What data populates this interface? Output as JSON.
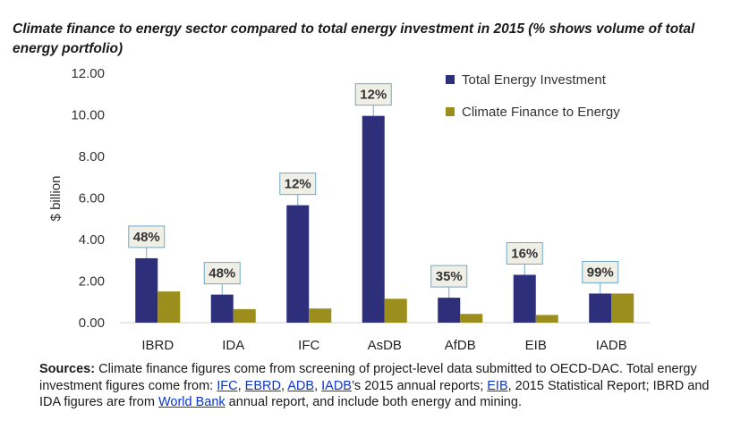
{
  "chart_data": {
    "type": "bar",
    "title": "Climate finance to energy sector compared to total energy investment in 2015 (% shows volume of total energy portfolio)",
    "ylabel": "$ billion",
    "categories": [
      "IBRD",
      "IDA",
      "IFC",
      "AsDB",
      "AfDB",
      "EIB",
      "IADB"
    ],
    "series": [
      {
        "name": "Total Energy Investment",
        "values": [
          3.1,
          1.35,
          5.65,
          9.95,
          1.2,
          2.3,
          1.4
        ],
        "color": "#2e2f7b"
      },
      {
        "name": "Climate Finance to Energy",
        "values": [
          1.5,
          0.65,
          0.68,
          1.15,
          0.42,
          0.37,
          1.4
        ],
        "color": "#9c8e1c"
      }
    ],
    "percent_labels": [
      "48%",
      "48%",
      "12%",
      "12%",
      "35%",
      "16%",
      "99%"
    ],
    "yticks": [
      "0.00",
      "2.00",
      "4.00",
      "6.00",
      "8.00",
      "10.00",
      "12.00"
    ],
    "ylim": [
      0,
      12
    ],
    "legend_position": "top-right",
    "grid": false
  },
  "sources": {
    "label": "Sources:",
    "t1": " Climate finance figures come from screening of project-level data submitted to OECD-DAC. Total energy investment figures come from: ",
    "l_ifc": "IFC",
    "sep1": ", ",
    "l_ebrd": "EBRD",
    "sep2": ", ",
    "l_adb": "ADB",
    "sep3": ", ",
    "l_iadb": "IADB",
    "t2": "’s 2015 annual reports; ",
    "l_eib": "EIB",
    "t3": ", 2015 Statistical Report; IBRD and IDA figures are from ",
    "l_wb": "World Bank",
    "t4": " annual report, and include both energy and mining."
  }
}
